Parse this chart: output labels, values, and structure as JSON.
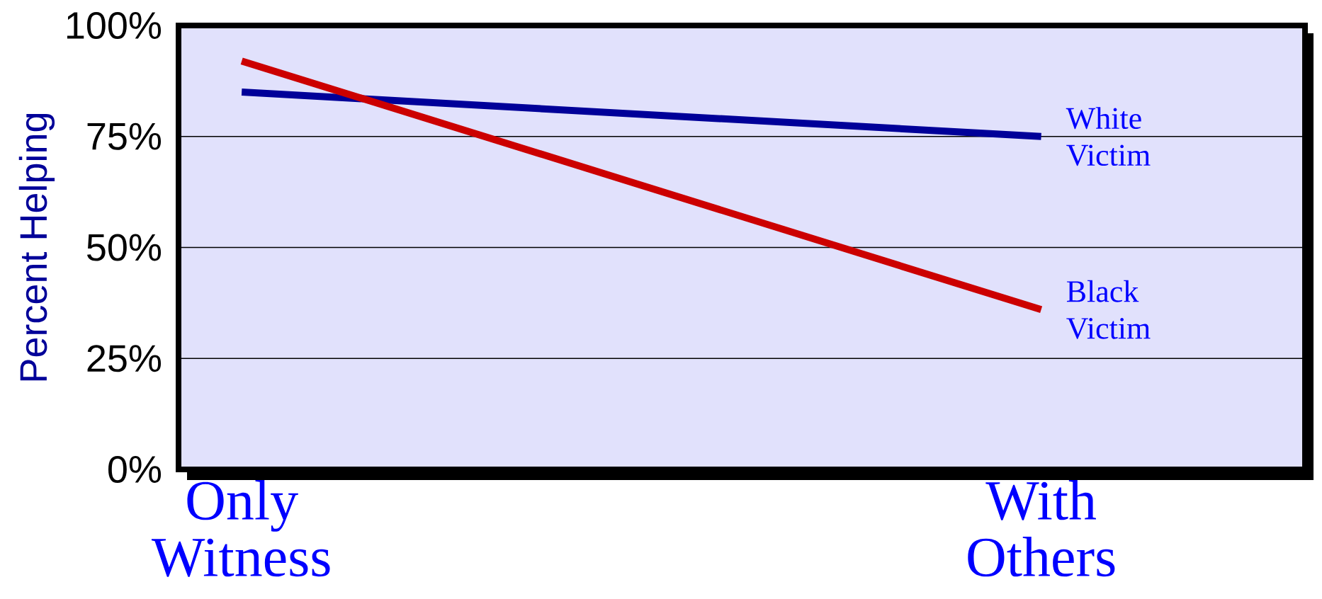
{
  "chart_data": {
    "type": "line",
    "ylabel": "Percent Helping",
    "categories": [
      "Only Witness",
      "With Others"
    ],
    "series": [
      {
        "name": "White Victim",
        "color": "#000099",
        "values": [
          85,
          75
        ]
      },
      {
        "name": "Black Victim",
        "color": "#cc0000",
        "values": [
          92,
          36
        ]
      }
    ],
    "ylim": [
      0,
      100
    ],
    "yticks": [
      {
        "value": 0,
        "label": "0%"
      },
      {
        "value": 25,
        "label": "25%"
      },
      {
        "value": 50,
        "label": "50%"
      },
      {
        "value": 75,
        "label": "75%"
      },
      {
        "value": 100,
        "label": "100%"
      }
    ],
    "grid": "y",
    "marker": "none",
    "line_style": "solid"
  }
}
